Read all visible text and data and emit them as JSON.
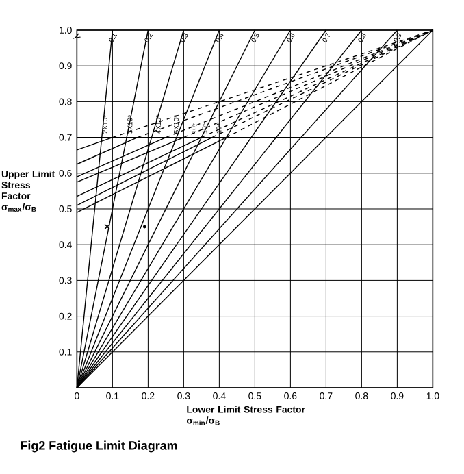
{
  "chart_data": {
    "type": "line",
    "title": "Fig2 Fatigue Limit Diagram",
    "xlabel": "Lower Limit Stress Factor σ$_{min}$/σ$_{B}$",
    "ylabel": "Upper Limit Stress Factor σ$_{max}$/σ$_{B}$",
    "xlim": [
      0,
      1
    ],
    "ylim": [
      0,
      1
    ],
    "xticks": [
      0,
      0.1,
      0.2,
      0.3,
      0.4,
      0.5,
      0.6,
      0.7,
      0.8,
      0.9,
      {
        "value": 1,
        "label": "1.0"
      }
    ],
    "yticks": [
      {
        "value": 0,
        "label": null
      },
      0.1,
      0.2,
      0.3,
      0.4,
      0.5,
      0.6,
      0.7,
      0.8,
      0.9,
      {
        "value": 1,
        "label": "1.0"
      }
    ],
    "grid": true,
    "marker": "none",
    "line_style": "solid",
    "series": [
      {
        "name": "0.1",
        "color": "#000000",
        "x": [
          0,
          0.1
        ],
        "values": [
          0,
          1
        ]
      },
      {
        "name": "0.2",
        "color": "#000000",
        "x": [
          0,
          0.2
        ],
        "values": [
          0,
          1
        ]
      },
      {
        "name": "0.3",
        "color": "#000000",
        "x": [
          0,
          0.3
        ],
        "values": [
          0,
          1
        ]
      },
      {
        "name": "0.4",
        "color": "#000000",
        "x": [
          0,
          0.4
        ],
        "values": [
          0,
          1
        ]
      },
      {
        "name": "0.5",
        "color": "#000000",
        "x": [
          0,
          0.5
        ],
        "values": [
          0,
          1
        ]
      },
      {
        "name": "0.6",
        "color": "#000000",
        "x": [
          0,
          0.6
        ],
        "values": [
          0,
          1
        ]
      },
      {
        "name": "0.7",
        "color": "#000000",
        "x": [
          0,
          0.7
        ],
        "values": [
          0,
          1
        ]
      },
      {
        "name": "0.8",
        "color": "#000000",
        "x": [
          0,
          0.8
        ],
        "values": [
          0,
          1
        ]
      },
      {
        "name": "0.9",
        "color": "#000000",
        "x": [
          0,
          0.9
        ],
        "values": [
          0,
          1
        ]
      },
      {
        "color": "#000000",
        "x": [
          0,
          0.7,
          1
        ],
        "values": [
          0,
          0.7,
          1
        ]
      },
      {
        "color": "#000000",
        "x": [
          0,
          0.7
        ],
        "values": [
          0.7,
          0.7
        ]
      },
      {
        "color": "#000000",
        "x": [
          0,
          0.1
        ],
        "values": [
          0.665,
          0.7
        ]
      },
      {
        "color": "#000000",
        "x": [
          0,
          0.17
        ],
        "values": [
          0.625,
          0.7
        ]
      },
      {
        "color": "#000000",
        "x": [
          0,
          0.25
        ],
        "values": [
          0.59,
          0.7
        ]
      },
      {
        "color": "#000000",
        "x": [
          0,
          0.3
        ],
        "values": [
          0.575,
          0.7
        ]
      },
      {
        "color": "#000000",
        "x": [
          0,
          0.35
        ],
        "values": [
          0.535,
          0.7
        ]
      },
      {
        "color": "#000000",
        "x": [
          0,
          0.38
        ],
        "values": [
          0.51,
          0.7
        ]
      },
      {
        "color": "#000000",
        "x": [
          0,
          0.42
        ],
        "values": [
          0.49,
          0.7
        ]
      },
      {
        "color": "#000000",
        "line_style": "dashed",
        "x": [
          0.1,
          1
        ],
        "values": [
          0.7,
          1
        ]
      },
      {
        "color": "#000000",
        "line_style": "dashed",
        "x": [
          0.17,
          1
        ],
        "values": [
          0.7,
          1
        ]
      },
      {
        "color": "#000000",
        "line_style": "dashed",
        "x": [
          0.25,
          1
        ],
        "values": [
          0.7,
          1
        ]
      },
      {
        "color": "#000000",
        "line_style": "dashed",
        "x": [
          0.3,
          1
        ],
        "values": [
          0.7,
          1
        ]
      },
      {
        "color": "#000000",
        "line_style": "dashed",
        "x": [
          0.35,
          1
        ],
        "values": [
          0.7,
          1
        ]
      },
      {
        "color": "#000000",
        "line_style": "dashed",
        "x": [
          0.38,
          1
        ],
        "values": [
          0.7,
          1
        ]
      },
      {
        "color": "#000000",
        "line_style": "dashed",
        "x": [
          0.42,
          1
        ],
        "values": [
          0.7,
          1
        ]
      },
      {
        "type": "scatter",
        "marker": "cross",
        "color": "#000000",
        "x": [
          0.085
        ],
        "values": [
          0.45
        ]
      },
      {
        "type": "scatter",
        "marker": "circle",
        "color": "#000000",
        "x": [
          0.19
        ],
        "values": [
          0.45
        ]
      }
    ],
    "annotations": [
      "γ",
      {
        "text": "2X10⁶",
        "x": 0.1,
        "y": 0.7
      },
      {
        "text": "3X10⁶",
        "x": 0.17,
        "y": 0.7
      },
      {
        "text": "4X10⁵",
        "x": 0.25,
        "y": 0.7
      },
      {
        "text": "5X10⁵",
        "x": 0.3,
        "y": 0.7
      },
      {
        "text": "10⁵",
        "x": 0.35,
        "y": 0.7
      },
      {
        "text": "10⁵",
        "x": 0.38,
        "y": 0.7
      },
      {
        "text": "10⁴",
        "x": 0.42,
        "y": 0.7
      }
    ]
  }
}
